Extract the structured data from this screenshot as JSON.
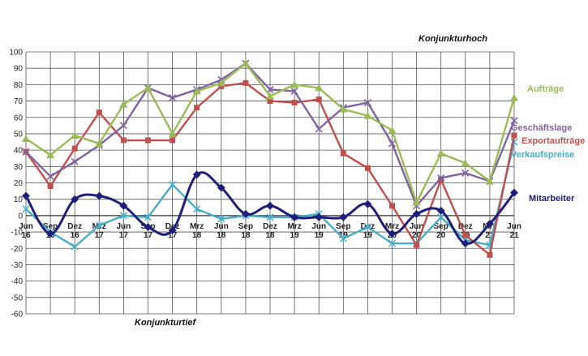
{
  "chart_data": {
    "type": "line",
    "ylim": [
      -60,
      100
    ],
    "y_ticks": [
      100,
      90,
      80,
      70,
      60,
      50,
      40,
      30,
      20,
      10,
      0,
      -10,
      -20,
      -30,
      -40,
      -50,
      -60
    ],
    "grid": true,
    "categories": [
      [
        "Jun",
        "16"
      ],
      [
        "Sep",
        "16"
      ],
      [
        "Dez",
        "16"
      ],
      [
        "Mrz",
        "17"
      ],
      [
        "Jun",
        "17"
      ],
      [
        "Sep",
        "17"
      ],
      [
        "Dez",
        "17"
      ],
      [
        "Mrz",
        "18"
      ],
      [
        "Jun",
        "18"
      ],
      [
        "Sep",
        "18"
      ],
      [
        "Dez",
        "18"
      ],
      [
        "Mrz",
        "19"
      ],
      [
        "Jun",
        "19"
      ],
      [
        "Sep",
        "19"
      ],
      [
        "Dez",
        "19"
      ],
      [
        "Mrz",
        "20"
      ],
      [
        "Jun",
        "20"
      ],
      [
        "Sep",
        "20"
      ],
      [
        "Dez",
        "20"
      ],
      [
        "Mrz",
        "21"
      ],
      [
        "Jun",
        "21"
      ]
    ],
    "annotations": {
      "top": "Konjunkturhoch",
      "bottom": "Konjunkturtief"
    },
    "series": [
      {
        "name": "Aufträge",
        "color": "#9bbb59",
        "marker": "triangle",
        "values": [
          47,
          37,
          49,
          44,
          68,
          78,
          50,
          76,
          81,
          93,
          73,
          80,
          78,
          65,
          61,
          52,
          8,
          38,
          32,
          21,
          72
        ]
      },
      {
        "name": "Geschäftslage",
        "color": "#8064a2",
        "marker": "x",
        "values": [
          39,
          24,
          33,
          43,
          55,
          78,
          72,
          77,
          83,
          93,
          77,
          76,
          53,
          66,
          69,
          44,
          6,
          23,
          26,
          21,
          58
        ]
      },
      {
        "name": "Exportaufträge",
        "color": "#c0504d",
        "marker": "square",
        "values": [
          39,
          18,
          41,
          63,
          46,
          46,
          46,
          66,
          79,
          81,
          70,
          69,
          71,
          38,
          29,
          6,
          -18,
          22,
          -12,
          -24,
          49
        ]
      },
      {
        "name": "Verkaufspreise",
        "color": "#4bacc6",
        "marker": "star",
        "values": [
          4,
          -10,
          -19,
          -6,
          0,
          -1,
          19,
          4,
          -2,
          0,
          -1,
          -1,
          1,
          -14,
          -7,
          -17,
          -17,
          -1,
          -15,
          -18,
          45
        ]
      },
      {
        "name": "Mitarbeiter",
        "color": "#1f1f7a",
        "marker": "diamond",
        "values": [
          12,
          -11,
          10,
          12,
          6,
          -7,
          -9,
          25,
          17,
          1,
          6,
          -1,
          -1,
          -1,
          7,
          -11,
          1,
          3,
          -17,
          -5,
          14
        ]
      }
    ]
  }
}
